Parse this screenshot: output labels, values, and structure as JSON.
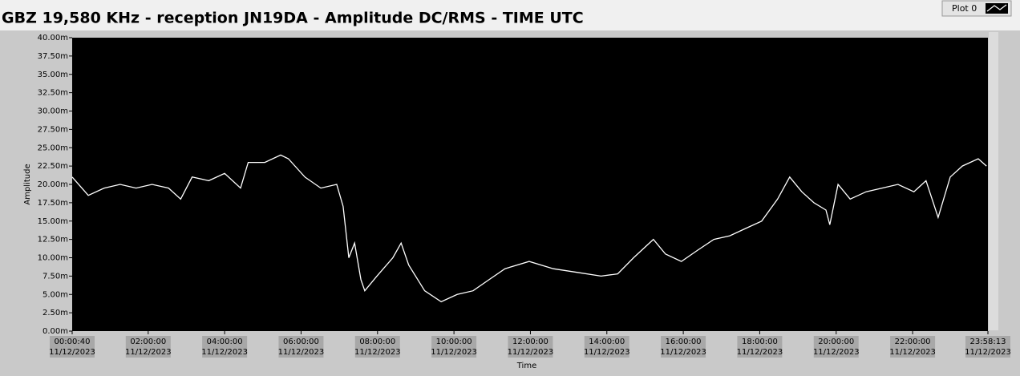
{
  "chart_data": {
    "type": "line",
    "title": "GBZ  19,580 KHz - reception JN19DA -  Amplitude DC/RMS   - TIME UTC",
    "x_label": "Time",
    "y_label": "Amplitude",
    "legend": "top-right",
    "grid": false,
    "ylim": [
      0,
      40
    ],
    "yticks": [
      {
        "value": 0,
        "label": "0.00m"
      },
      {
        "value": 2.5,
        "label": "2.50m"
      },
      {
        "value": 5,
        "label": "5.00m"
      },
      {
        "value": 7.5,
        "label": "7.50m"
      },
      {
        "value": 10,
        "label": "10.00m"
      },
      {
        "value": 12.5,
        "label": "12.50m"
      },
      {
        "value": 15,
        "label": "15.00m"
      },
      {
        "value": 17.5,
        "label": "17.50m"
      },
      {
        "value": 20,
        "label": "20.00m"
      },
      {
        "value": 22.5,
        "label": "22.50m"
      },
      {
        "value": 25,
        "label": "25.00m"
      },
      {
        "value": 27.5,
        "label": "27.50m"
      },
      {
        "value": 30,
        "label": "30.00m"
      },
      {
        "value": 32.5,
        "label": "32.50m"
      },
      {
        "value": 35,
        "label": "35.00m"
      },
      {
        "value": 37.5,
        "label": "37.50m"
      },
      {
        "value": 40,
        "label": "40.00m"
      }
    ],
    "xlim": [
      "2023-12-11T00:00:40",
      "2023-12-11T23:58:13"
    ],
    "xticks": [
      {
        "value": "2023-12-11T00:00:40",
        "label": "00:00:40",
        "date": "11/12/2023"
      },
      {
        "value": "2023-12-11T02:00:00",
        "label": "02:00:00",
        "date": "11/12/2023"
      },
      {
        "value": "2023-12-11T04:00:00",
        "label": "04:00:00",
        "date": "11/12/2023"
      },
      {
        "value": "2023-12-11T06:00:00",
        "label": "06:00:00",
        "date": "11/12/2023"
      },
      {
        "value": "2023-12-11T08:00:00",
        "label": "08:00:00",
        "date": "11/12/2023"
      },
      {
        "value": "2023-12-11T10:00:00",
        "label": "10:00:00",
        "date": "11/12/2023"
      },
      {
        "value": "2023-12-11T12:00:00",
        "label": "12:00:00",
        "date": "11/12/2023"
      },
      {
        "value": "2023-12-11T14:00:00",
        "label": "14:00:00",
        "date": "11/12/2023"
      },
      {
        "value": "2023-12-11T16:00:00",
        "label": "16:00:00",
        "date": "11/12/2023"
      },
      {
        "value": "2023-12-11T18:00:00",
        "label": "18:00:00",
        "date": "11/12/2023"
      },
      {
        "value": "2023-12-11T20:00:00",
        "label": "20:00:00",
        "date": "11/12/2023"
      },
      {
        "value": "2023-12-11T22:00:00",
        "label": "22:00:00",
        "date": "11/12/2023"
      },
      {
        "value": "2023-12-11T23:58:13",
        "label": "23:58:13",
        "date": "11/12/2023"
      }
    ],
    "x": [
      "2023-12-11T00:00:40",
      "2023-12-11T00:26:00",
      "2023-12-11T00:51:00",
      "2023-12-11T01:16:00",
      "2023-12-11T01:41:00",
      "2023-12-11T02:06:00",
      "2023-12-11T02:32:00",
      "2023-12-11T02:51:00",
      "2023-12-11T03:09:00",
      "2023-12-11T03:35:00",
      "2023-12-11T04:00:00",
      "2023-12-11T04:25:00",
      "2023-12-11T04:37:00",
      "2023-12-11T05:03:00",
      "2023-12-11T05:28:00",
      "2023-12-11T05:40:00",
      "2023-12-11T06:06:00",
      "2023-12-11T06:31:00",
      "2023-12-11T06:56:00",
      "2023-12-11T07:06:00",
      "2023-12-11T07:15:00",
      "2023-12-11T07:24:00",
      "2023-12-11T07:34:00",
      "2023-12-11T07:40:00",
      "2023-12-11T07:59:00",
      "2023-12-11T08:24:00",
      "2023-12-11T08:37:00",
      "2023-12-11T08:49:00",
      "2023-12-11T09:14:00",
      "2023-12-11T09:40:00",
      "2023-12-11T10:05:00",
      "2023-12-11T10:30:00",
      "2023-12-11T10:55:00",
      "2023-12-11T11:20:00",
      "2023-12-11T11:58:00",
      "2023-12-11T12:36:00",
      "2023-12-11T13:14:00",
      "2023-12-11T13:51:00",
      "2023-12-11T14:17:00",
      "2023-12-11T14:42:00",
      "2023-12-11T15:13:00",
      "2023-12-11T15:32:00",
      "2023-12-11T15:57:00",
      "2023-12-11T16:22:00",
      "2023-12-11T16:48:00",
      "2023-12-11T17:13:00",
      "2023-12-11T17:38:00",
      "2023-12-11T18:03:00",
      "2023-12-11T18:28:00",
      "2023-12-11T18:47:00",
      "2023-12-11T19:06:00",
      "2023-12-11T19:25:00",
      "2023-12-11T19:44:00",
      "2023-12-11T19:50:00",
      "2023-12-11T20:03:00",
      "2023-12-11T20:22:00",
      "2023-12-11T20:47:00",
      "2023-12-11T21:12:00",
      "2023-12-11T21:37:00",
      "2023-12-11T22:02:00",
      "2023-12-11T22:21:00",
      "2023-12-11T22:40:00",
      "2023-12-11T22:59:00",
      "2023-12-11T23:18:00",
      "2023-12-11T23:43:00",
      "2023-12-11T23:56:00"
    ],
    "series": [
      {
        "name": "Plot 0",
        "color": "#ffffff",
        "values": [
          21,
          18.5,
          19.5,
          20,
          19.5,
          20,
          19.5,
          18,
          21,
          20.5,
          21.5,
          19.5,
          23,
          23,
          24,
          23.5,
          21,
          19.5,
          20,
          17,
          10,
          12,
          7,
          5.5,
          7.5,
          10,
          12,
          9,
          5.5,
          4,
          5,
          5.5,
          7,
          8.5,
          9.5,
          8.5,
          8,
          7.5,
          7.8,
          10,
          12.5,
          10.5,
          9.5,
          11,
          12.5,
          13,
          14,
          15,
          18,
          21,
          19,
          17.5,
          16.5,
          14.5,
          20,
          18,
          19,
          19.5,
          20,
          19,
          20.5,
          15.5,
          21,
          22.5,
          23.5,
          22.5
        ]
      }
    ]
  }
}
